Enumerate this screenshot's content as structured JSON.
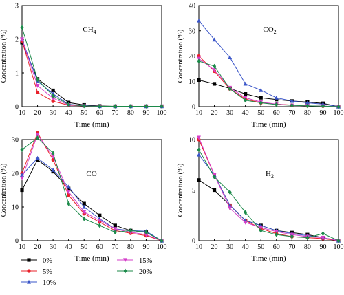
{
  "chart_data": [
    {
      "type": "line",
      "title": "CH4",
      "title_main": "CH",
      "title_sub": "4",
      "xlabel": "Time (min)",
      "ylabel": "Concentration (%)",
      "xlim": [
        10,
        100
      ],
      "ylim": [
        0,
        3
      ],
      "xticks": [
        10,
        20,
        30,
        40,
        50,
        60,
        70,
        80,
        90,
        100
      ],
      "yticks": [
        0,
        1,
        2,
        3
      ],
      "x": [
        10,
        20,
        30,
        40,
        50,
        60,
        70,
        80,
        90,
        100
      ],
      "series": [
        {
          "name": "0%",
          "values": [
            1.9,
            0.82,
            0.48,
            0.12,
            0.05,
            0.02,
            0.01,
            0.01,
            0.01,
            0.01
          ]
        },
        {
          "name": "5%",
          "values": [
            1.95,
            0.42,
            0.16,
            0.04,
            0.02,
            0.01,
            0.01,
            0.01,
            0.01,
            0.01
          ]
        },
        {
          "name": "10%",
          "values": [
            2.0,
            0.75,
            0.38,
            0.07,
            0.03,
            0.01,
            0.01,
            0.01,
            0.01,
            0.01
          ]
        },
        {
          "name": "15%",
          "values": [
            2.0,
            0.62,
            0.25,
            0.05,
            0.02,
            0.01,
            0.01,
            0.01,
            0.01,
            0.01
          ]
        },
        {
          "name": "20%",
          "values": [
            2.35,
            0.8,
            0.32,
            0.06,
            0.02,
            0.01,
            0.01,
            0.01,
            0.01,
            0.01
          ]
        }
      ]
    },
    {
      "type": "line",
      "title": "CO2",
      "title_main": "CO",
      "title_sub": "2",
      "xlabel": "Time (min)",
      "ylabel": "Concentration (%)",
      "xlim": [
        10,
        100
      ],
      "ylim": [
        0,
        40
      ],
      "xticks": [
        10,
        20,
        30,
        40,
        50,
        60,
        70,
        80,
        90,
        100
      ],
      "yticks": [
        0,
        10,
        20,
        30,
        40
      ],
      "x": [
        10,
        20,
        30,
        40,
        50,
        60,
        70,
        80,
        90,
        100
      ],
      "series": [
        {
          "name": "0%",
          "values": [
            10.5,
            9.0,
            7.2,
            5.0,
            3.5,
            2.8,
            2.2,
            1.8,
            1.3,
            0.0
          ]
        },
        {
          "name": "5%",
          "values": [
            20.0,
            14.0,
            7.0,
            3.0,
            1.5,
            1.0,
            0.6,
            0.3,
            0.2,
            0.0
          ]
        },
        {
          "name": "10%",
          "values": [
            34.0,
            26.5,
            19.5,
            9.0,
            6.5,
            3.5,
            2.2,
            1.5,
            1.0,
            0.0
          ]
        },
        {
          "name": "15%",
          "values": [
            19.0,
            14.5,
            7.5,
            3.5,
            1.8,
            1.0,
            0.5,
            0.3,
            0.2,
            0.0
          ]
        },
        {
          "name": "20%",
          "values": [
            18.0,
            16.0,
            7.0,
            2.5,
            1.5,
            0.8,
            0.5,
            0.3,
            0.2,
            0.0
          ]
        }
      ]
    },
    {
      "type": "line",
      "title": "CO",
      "title_main": "CO",
      "title_sub": "",
      "xlabel": "Time (min)",
      "ylabel": "Concentration (%)",
      "xlim": [
        10,
        100
      ],
      "ylim": [
        0,
        30
      ],
      "xticks": [
        10,
        20,
        30,
        40,
        50,
        60,
        70,
        80,
        90,
        100
      ],
      "yticks": [
        0,
        10,
        20,
        30
      ],
      "x": [
        10,
        20,
        30,
        40,
        50,
        60,
        70,
        80,
        90,
        100
      ],
      "series": [
        {
          "name": "0%",
          "values": [
            15.0,
            24.0,
            20.5,
            15.5,
            11.0,
            7.5,
            4.5,
            3.0,
            2.5,
            0.0
          ]
        },
        {
          "name": "5%",
          "values": [
            20.0,
            32.0,
            24.0,
            13.5,
            8.0,
            5.5,
            3.0,
            2.2,
            1.5,
            0.0
          ]
        },
        {
          "name": "10%",
          "values": [
            19.5,
            24.5,
            21.0,
            16.0,
            10.0,
            6.5,
            3.5,
            3.0,
            2.8,
            0.0
          ]
        },
        {
          "name": "15%",
          "values": [
            18.5,
            31.5,
            25.0,
            14.5,
            8.5,
            6.0,
            3.5,
            2.5,
            1.8,
            0.0
          ]
        },
        {
          "name": "20%",
          "values": [
            27.0,
            30.5,
            26.0,
            11.0,
            6.5,
            4.5,
            2.5,
            3.0,
            2.5,
            0.0
          ]
        }
      ]
    },
    {
      "type": "line",
      "title": "H2",
      "title_main": "H",
      "title_sub": "2",
      "xlabel": "Time (min)",
      "ylabel": "Concentration (%)",
      "xlim": [
        10,
        100
      ],
      "ylim": [
        0,
        10
      ],
      "xticks": [
        10,
        20,
        30,
        40,
        50,
        60,
        70,
        80,
        90,
        100
      ],
      "yticks": [
        0,
        5,
        10
      ],
      "x": [
        10,
        20,
        30,
        40,
        50,
        60,
        70,
        80,
        90,
        100
      ],
      "series": [
        {
          "name": "0%",
          "values": [
            6.0,
            5.0,
            3.5,
            2.0,
            1.5,
            1.0,
            0.8,
            0.6,
            0.3,
            0.0
          ]
        },
        {
          "name": "5%",
          "values": [
            10.0,
            6.5,
            3.5,
            2.0,
            1.2,
            0.7,
            0.4,
            0.3,
            0.2,
            0.0
          ]
        },
        {
          "name": "10%",
          "values": [
            8.5,
            6.5,
            3.5,
            2.0,
            1.5,
            1.0,
            0.7,
            0.5,
            0.3,
            0.0
          ]
        },
        {
          "name": "15%",
          "values": [
            10.2,
            6.5,
            3.2,
            1.8,
            1.3,
            0.9,
            0.6,
            0.4,
            0.3,
            0.0
          ]
        },
        {
          "name": "20%",
          "values": [
            9.0,
            6.3,
            4.8,
            2.8,
            1.0,
            0.6,
            0.4,
            0.3,
            0.7,
            0.0
          ]
        }
      ]
    }
  ],
  "legend": {
    "placement": "bottom-left",
    "entries": [
      "0%",
      "5%",
      "10%",
      "15%",
      "20%"
    ]
  },
  "series_styles": [
    {
      "name": "0%",
      "color": "#000000",
      "marker": "square"
    },
    {
      "name": "5%",
      "color": "#e8202a",
      "marker": "circle"
    },
    {
      "name": "10%",
      "color": "#3a55c8",
      "marker": "triangle-up"
    },
    {
      "name": "15%",
      "color": "#d43fc9",
      "marker": "triangle-down"
    },
    {
      "name": "20%",
      "color": "#1c8a4a",
      "marker": "diamond"
    }
  ]
}
